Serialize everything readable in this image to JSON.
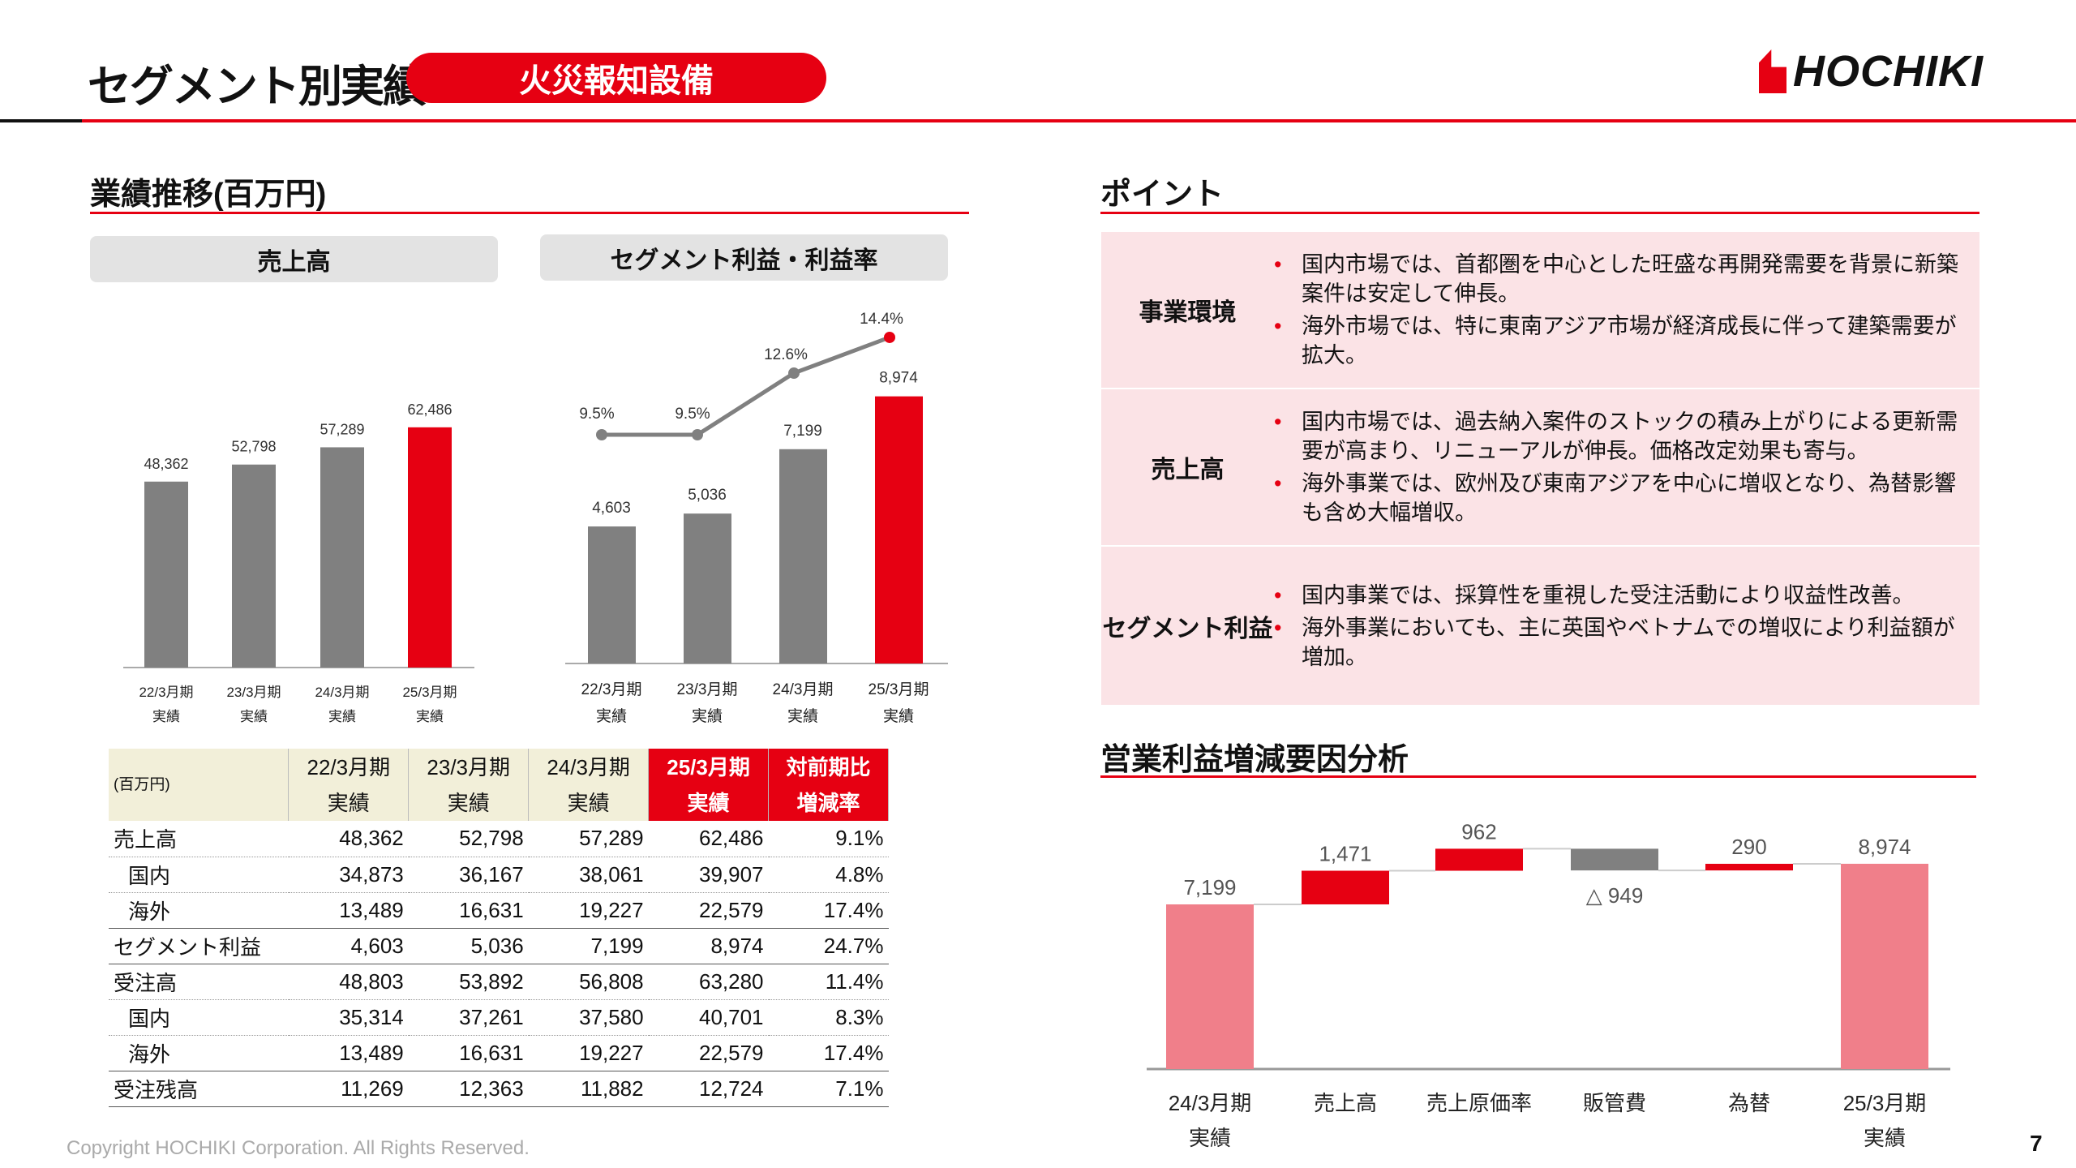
{
  "header": {
    "title": "セグメント別実績",
    "segment": "火災報知設備",
    "logo": "HOCHIKI"
  },
  "left": {
    "heading": "業績推移(百万円)",
    "chart1_title": "売上高",
    "chart2_title": "セグメント利益・利益率"
  },
  "chart_data": [
    {
      "type": "bar",
      "title": "売上高",
      "categories": [
        [
          "22/3月期",
          "実績"
        ],
        [
          "23/3月期",
          "実績"
        ],
        [
          "24/3月期",
          "実績"
        ],
        [
          "25/3月期",
          "実績"
        ]
      ],
      "values": [
        48362,
        52798,
        57289,
        62486
      ],
      "labels": [
        "48,362",
        "52,798",
        "57,289",
        "62,486"
      ],
      "colors": [
        "#808080",
        "#808080",
        "#808080",
        "#e60012"
      ]
    },
    {
      "type": "bar+line",
      "title": "セグメント利益・利益率",
      "categories": [
        [
          "22/3月期",
          "実績"
        ],
        [
          "23/3月期",
          "実績"
        ],
        [
          "24/3月期",
          "実績"
        ],
        [
          "25/3月期",
          "実績"
        ]
      ],
      "series": [
        {
          "type": "bar",
          "values": [
            4603,
            5036,
            7199,
            8974
          ],
          "labels": [
            "4,603",
            "5,036",
            "7,199",
            "8,974"
          ]
        },
        {
          "type": "line",
          "values": [
            9.5,
            9.5,
            12.6,
            14.4
          ],
          "labels": [
            "9.5%",
            "9.5%",
            "12.6%",
            "14.4%"
          ]
        }
      ],
      "colors": [
        "#808080",
        "#808080",
        "#808080",
        "#e60012"
      ]
    },
    {
      "type": "waterfall",
      "title": "営業利益増減要因分析",
      "categories": [
        [
          "24/3月期",
          "実績"
        ],
        [
          "売上高"
        ],
        [
          "売上原価率"
        ],
        [
          "販管費"
        ],
        [
          "為替"
        ],
        [
          "25/3月期",
          "実績"
        ]
      ],
      "values": [
        7199,
        1471,
        962,
        -949,
        290,
        8974
      ],
      "labels": [
        "7,199",
        "1,471",
        "962",
        "△ 949",
        "290",
        "8,974"
      ],
      "kinds": [
        "total",
        "delta",
        "delta",
        "delta",
        "delta",
        "total"
      ],
      "colors": {
        "total": "#f07f8a",
        "increase": "#e60012",
        "decrease": "#808080"
      }
    }
  ],
  "table": {
    "unit": "(百万円)",
    "headers": [
      [
        "22/3月期",
        "実績"
      ],
      [
        "23/3月期",
        "実績"
      ],
      [
        "24/3月期",
        "実績"
      ],
      [
        "25/3月期",
        "実績"
      ],
      [
        "対前期比",
        "増減率"
      ]
    ],
    "rows": [
      {
        "label": "売上高",
        "indent": false,
        "values": [
          "48,362",
          "52,798",
          "57,289",
          "62,486",
          "9.1%"
        ]
      },
      {
        "label": "国内",
        "indent": true,
        "values": [
          "34,873",
          "36,167",
          "38,061",
          "39,907",
          "4.8%"
        ]
      },
      {
        "label": "海外",
        "indent": true,
        "values": [
          "13,489",
          "16,631",
          "19,227",
          "22,579",
          "17.4%"
        ]
      },
      {
        "label": "セグメント利益",
        "indent": false,
        "values": [
          "4,603",
          "5,036",
          "7,199",
          "8,974",
          "24.7%"
        ]
      },
      {
        "label": "受注高",
        "indent": false,
        "values": [
          "48,803",
          "53,892",
          "56,808",
          "63,280",
          "11.4%"
        ]
      },
      {
        "label": "国内",
        "indent": true,
        "values": [
          "35,314",
          "37,261",
          "37,580",
          "40,701",
          "8.3%"
        ]
      },
      {
        "label": "海外",
        "indent": true,
        "values": [
          "13,489",
          "16,631",
          "19,227",
          "22,579",
          "17.4%"
        ]
      },
      {
        "label": "受注残高",
        "indent": false,
        "values": [
          "11,269",
          "12,363",
          "11,882",
          "12,724",
          "7.1%"
        ]
      }
    ]
  },
  "points": {
    "heading": "ポイント",
    "rows": [
      {
        "label": "事業環境",
        "items": [
          "国内市場では、首都圏を中心とした旺盛な再開発需要を背景に新築案件は安定して伸長。",
          "海外市場では、特に東南アジア市場が経済成長に伴って建築需要が拡大。"
        ]
      },
      {
        "label": "売上高",
        "items": [
          "国内市場では、過去納入案件のストックの積み上がりによる更新需要が高まり、リニューアルが伸長。価格改定効果も寄与。",
          "海外事業では、欧州及び東南アジアを中心に増収となり、為替影響も含め大幅増収。"
        ]
      },
      {
        "label": "セグメント利益",
        "items": [
          "国内事業では、採算性を重視した受注活動により収益性改善。",
          "海外事業においても、主に英国やベトナムでの増収により利益額が増加。"
        ]
      }
    ]
  },
  "waterfall_heading": "営業利益増減要因分析",
  "footer": {
    "copyright": "Copyright HOCHIKI Corporation. All Rights Reserved.",
    "page": "7"
  }
}
